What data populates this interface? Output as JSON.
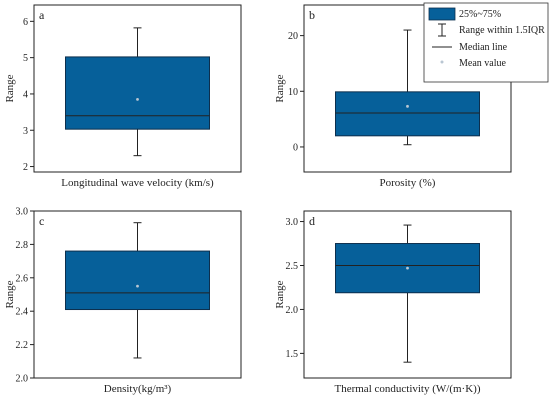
{
  "colors": {
    "box_fill": "#06609a",
    "box_stroke": "#0d2f4d",
    "line": "#222222",
    "mean": "#b9c6d2"
  },
  "legend": {
    "box_label": "25%~75%",
    "whisker_label": "Range within 1.5IQR",
    "median_label": "Median line",
    "mean_label": "Mean value"
  },
  "chart_data": [
    {
      "type": "box",
      "panel": "a",
      "xlabel": "Longitudinal wave velocity (km/s)",
      "ylabel": "Range",
      "ylim": [
        1.85,
        6.45
      ],
      "ticks": [
        2,
        3,
        4,
        5,
        6
      ],
      "tick_labels": [
        "2",
        "3",
        "4",
        "5",
        "6"
      ],
      "whisker_low": 2.3,
      "q1": 3.03,
      "median": 3.4,
      "q3": 5.02,
      "whisker_high": 5.82,
      "mean": 3.85
    },
    {
      "type": "box",
      "panel": "b",
      "xlabel": "Porosity (%)",
      "ylabel": "Range",
      "ylim": [
        -4.5,
        25.5
      ],
      "ticks": [
        0,
        10,
        20
      ],
      "tick_labels": [
        "0",
        "10",
        "20"
      ],
      "whisker_low": 0.4,
      "q1": 2.0,
      "median": 6.1,
      "q3": 9.9,
      "whisker_high": 21.0,
      "mean": 7.3
    },
    {
      "type": "box",
      "panel": "c",
      "xlabel": "Density(kg/m³)",
      "ylabel": "Range",
      "ylim": [
        2.0,
        3.0
      ],
      "ticks": [
        2.0,
        2.2,
        2.4,
        2.6,
        2.8,
        3.0
      ],
      "tick_labels": [
        "2.0",
        "2.2",
        "2.4",
        "2.6",
        "2.8",
        "3.0"
      ],
      "whisker_low": 2.12,
      "q1": 2.41,
      "median": 2.51,
      "q3": 2.76,
      "whisker_high": 2.93,
      "mean": 2.55
    },
    {
      "type": "box",
      "panel": "d",
      "xlabel": "Thermal conductivity (W/(m·K))",
      "ylabel": "Range",
      "ylim": [
        1.22,
        3.12
      ],
      "ticks": [
        1.5,
        2.0,
        2.5,
        3.0
      ],
      "tick_labels": [
        "1.5",
        "2.0",
        "2.5",
        "3.0"
      ],
      "whisker_low": 1.4,
      "q1": 2.19,
      "median": 2.5,
      "q3": 2.75,
      "whisker_high": 2.96,
      "mean": 2.47
    }
  ]
}
